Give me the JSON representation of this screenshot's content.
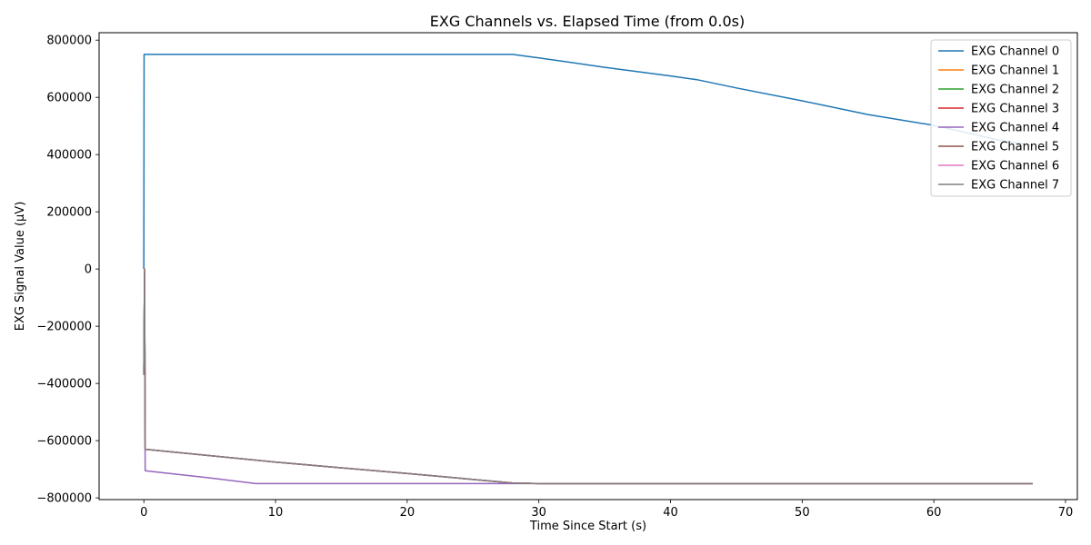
{
  "chart_data": {
    "type": "line",
    "title": "EXG Channels vs. Elapsed Time (from 0.0s)",
    "xlabel": "Time Since Start (s)",
    "ylabel": "EXG Signal Value (µV)",
    "xlim": [
      -3.4,
      70.9
    ],
    "ylim": [
      -806000,
      826000
    ],
    "xticks": [
      0,
      10,
      20,
      30,
      40,
      50,
      60,
      70
    ],
    "yticks": [
      -800000,
      -600000,
      -400000,
      -200000,
      0,
      200000,
      400000,
      600000,
      800000
    ],
    "grid": false,
    "legend_position": "top-right",
    "series": [
      {
        "name": "EXG Channel 0",
        "color": "#1f77b4",
        "x": [
          0,
          0.02,
          0.05,
          5,
          10,
          20,
          28,
          30,
          35,
          40,
          42,
          45,
          50,
          55,
          60,
          65,
          67.5
        ],
        "y": [
          0,
          750000,
          750000,
          750000,
          750000,
          750000,
          750000,
          738000,
          705000,
          675000,
          662000,
          633000,
          588000,
          540000,
          502000,
          450000,
          432000
        ]
      },
      {
        "name": "EXG Channel 1",
        "color": "#ff7f0e",
        "x": [
          0,
          0.05,
          0.1,
          10,
          20,
          28,
          30,
          40,
          50,
          60,
          67.5
        ],
        "y": [
          -350000,
          -10000,
          -630000,
          -675000,
          -715000,
          -748000,
          -750000,
          -750000,
          -750000,
          -750000,
          -750000
        ]
      },
      {
        "name": "EXG Channel 2",
        "color": "#2ca02c",
        "x": [
          0,
          0.05,
          0.1,
          10,
          20,
          28,
          30,
          40,
          50,
          60,
          67.5
        ],
        "y": [
          -350000,
          -10000,
          -630000,
          -675000,
          -715000,
          -748000,
          -750000,
          -750000,
          -750000,
          -750000,
          -750000
        ]
      },
      {
        "name": "EXG Channel 3",
        "color": "#d62728",
        "x": [
          0,
          0.05,
          0.1,
          10,
          20,
          28,
          30,
          40,
          50,
          60,
          67.5
        ],
        "y": [
          -350000,
          -10000,
          -630000,
          -675000,
          -715000,
          -748000,
          -750000,
          -750000,
          -750000,
          -750000,
          -750000
        ]
      },
      {
        "name": "EXG Channel 4",
        "color": "#9467bd",
        "x": [
          0,
          0.05,
          0.1,
          5,
          8.5,
          10,
          20,
          30,
          40,
          50,
          60,
          67.5
        ],
        "y": [
          -360000,
          -150000,
          -705000,
          -730000,
          -750000,
          -750000,
          -750000,
          -750000,
          -750000,
          -750000,
          -750000,
          -750000
        ]
      },
      {
        "name": "EXG Channel 5",
        "color": "#8c564b",
        "x": [
          0,
          0.05,
          0.1,
          10,
          20,
          28,
          30,
          40,
          50,
          60,
          67.5
        ],
        "y": [
          -370000,
          0,
          -630000,
          -675000,
          -715000,
          -748000,
          -750000,
          -750000,
          -750000,
          -750000,
          -750000
        ]
      },
      {
        "name": "EXG Channel 6",
        "color": "#e377c2",
        "x": [
          0,
          0.05,
          0.1,
          10,
          20,
          28,
          30,
          40,
          50,
          60,
          67.5
        ],
        "y": [
          -350000,
          -10000,
          -630000,
          -675000,
          -715000,
          -748000,
          -750000,
          -750000,
          -750000,
          -750000,
          -750000
        ]
      },
      {
        "name": "EXG Channel 7",
        "color": "#7f7f7f",
        "x": [
          0,
          0.05,
          0.1,
          10,
          20,
          28,
          30,
          40,
          50,
          60,
          67.5
        ],
        "y": [
          -350000,
          -10000,
          -630000,
          -675000,
          -715000,
          -748000,
          -750000,
          -750000,
          -750000,
          -750000,
          -750000
        ]
      }
    ]
  }
}
